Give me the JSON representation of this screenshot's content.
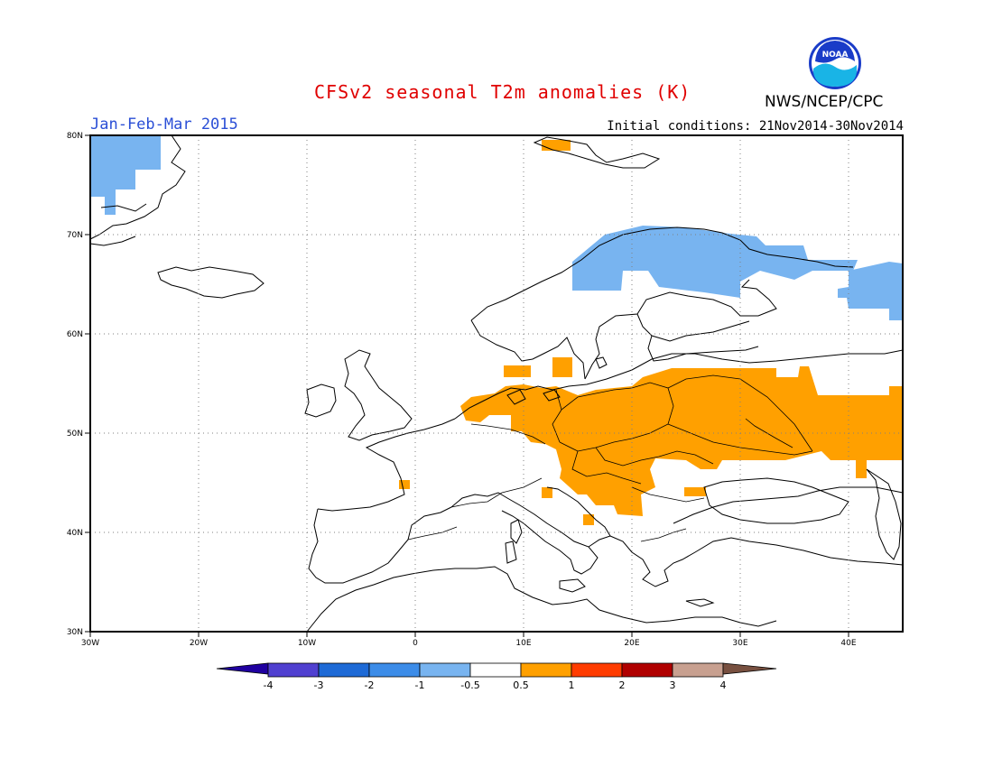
{
  "header": {
    "title": "CFSv2 seasonal T2m anomalies (K)",
    "agency": "NWS/NCEP/CPC",
    "logo_text": "NOAA",
    "season": "Jan-Feb-Mar 2015",
    "init": "Initial conditions: 21Nov2014-30Nov2014"
  },
  "axes": {
    "lon_ticks": [
      "30W",
      "20W",
      "10W",
      "0",
      "10E",
      "20E",
      "30E",
      "40E"
    ],
    "lat_ticks": [
      "80N",
      "70N",
      "60N",
      "50N",
      "40N",
      "30N"
    ],
    "lon_range": [
      -30,
      45
    ],
    "lat_range": [
      30,
      80
    ],
    "grid": "dotted"
  },
  "colorbar": {
    "labels": [
      "-4",
      "-3",
      "-2",
      "-1",
      "-0.5",
      "0.5",
      "1",
      "2",
      "3",
      "4"
    ],
    "colors": [
      "#2000a0",
      "#5040d0",
      "#1e6ad6",
      "#3c8ce8",
      "#78b4f0",
      "#ffffff",
      "#ffa000",
      "#ff3c00",
      "#b00000",
      "#c8a090",
      "#785040"
    ]
  },
  "anomaly_regions": {
    "warm_color": "#ffa000",
    "cold_color": "#78b4f0",
    "warm": "Central and Eastern Europe, Low Countries, southern Scandinavia coast, western Russia",
    "cold": "Greenland east coast, northern Scandinavia, northwestern Russia"
  }
}
